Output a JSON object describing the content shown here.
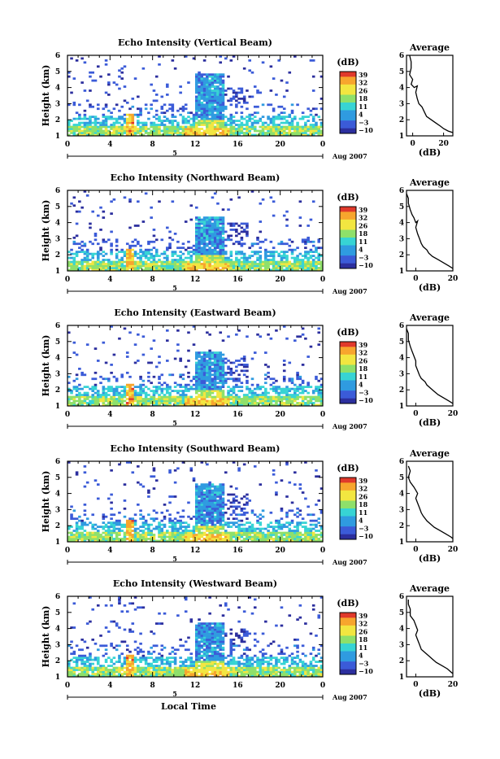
{
  "chart_data": [
    {
      "type": "heatmap",
      "title": "Echo Intensity (Vertical Beam)",
      "ylabel": "Height (km)",
      "colorbar_title": "(dB)",
      "colorbar_ticks": [
        "39",
        "32",
        "26",
        "18",
        "11",
        "4",
        "−3",
        "−10"
      ],
      "xticks": [
        "0",
        "4",
        "8",
        "12",
        "16",
        "20",
        "0"
      ],
      "xlim": [
        0,
        24
      ],
      "ylim": [
        1,
        6
      ],
      "date_day": "5",
      "date_label": "Aug 2007",
      "avg": {
        "title": "Average",
        "xlabel": "(dB)",
        "xticks": [
          "0",
          "20"
        ],
        "yticks": [
          "1",
          "2",
          "3",
          "4",
          "5",
          "6"
        ],
        "xlim": [
          -4,
          26
        ],
        "profile": [
          [
            -2,
            6.0
          ],
          [
            -1,
            5.6
          ],
          [
            -1,
            5.2
          ],
          [
            -2,
            4.8
          ],
          [
            0,
            4.5
          ],
          [
            -1,
            4.2
          ],
          [
            1,
            4.0
          ],
          [
            3,
            4.1
          ],
          [
            2,
            3.7
          ],
          [
            3,
            3.3
          ],
          [
            4,
            3.0
          ],
          [
            6,
            2.8
          ],
          [
            7,
            2.6
          ],
          [
            8,
            2.4
          ],
          [
            9,
            2.2
          ],
          [
            12,
            2.0
          ],
          [
            15,
            1.8
          ],
          [
            18,
            1.6
          ],
          [
            20,
            1.45
          ],
          [
            23,
            1.3
          ],
          [
            26,
            1.2
          ]
        ]
      }
    },
    {
      "type": "heatmap",
      "title": "Echo Intensity (Northward Beam)",
      "ylabel": "Height (km)",
      "colorbar_title": "(dB)",
      "colorbar_ticks": [
        "39",
        "32",
        "26",
        "18",
        "11",
        "4",
        "−3",
        "−10"
      ],
      "xticks": [
        "0",
        "4",
        "8",
        "12",
        "16",
        "20",
        "0"
      ],
      "xlim": [
        0,
        24
      ],
      "ylim": [
        1,
        6
      ],
      "date_day": "5",
      "date_label": "Aug 2007",
      "avg": {
        "title": "Average",
        "xlabel": "(dB)",
        "xticks": [
          "0",
          "20"
        ],
        "yticks": [
          "1",
          "2",
          "3",
          "4",
          "5",
          "6"
        ],
        "xlim": [
          -5,
          20
        ],
        "profile": [
          [
            -5,
            5.8
          ],
          [
            -4,
            5.5
          ],
          [
            -4,
            5.2
          ],
          [
            -3,
            4.8
          ],
          [
            -2,
            4.5
          ],
          [
            -1,
            4.3
          ],
          [
            0,
            4.0
          ],
          [
            1,
            4.1
          ],
          [
            0,
            3.7
          ],
          [
            1,
            3.3
          ],
          [
            2,
            3.0
          ],
          [
            3,
            2.7
          ],
          [
            4,
            2.5
          ],
          [
            6,
            2.3
          ],
          [
            7,
            2.1
          ],
          [
            9,
            1.9
          ],
          [
            12,
            1.7
          ],
          [
            15,
            1.5
          ],
          [
            18,
            1.3
          ],
          [
            20,
            1.15
          ]
        ]
      }
    },
    {
      "type": "heatmap",
      "title": "Echo Intensity (Eastward Beam)",
      "ylabel": "Height (km)",
      "colorbar_title": "(dB)",
      "colorbar_ticks": [
        "39",
        "32",
        "26",
        "18",
        "11",
        "4",
        "−3",
        "−10"
      ],
      "xticks": [
        "0",
        "4",
        "8",
        "12",
        "16",
        "20",
        "0"
      ],
      "xlim": [
        0,
        24
      ],
      "ylim": [
        1,
        6
      ],
      "date_day": "5",
      "date_label": "Aug 2007",
      "avg": {
        "title": "Average",
        "xlabel": "(dB)",
        "xticks": [
          "0",
          "20"
        ],
        "yticks": [
          "1",
          "2",
          "3",
          "4",
          "5",
          "6"
        ],
        "xlim": [
          -5,
          20
        ],
        "profile": [
          [
            -5,
            5.8
          ],
          [
            -4,
            5.5
          ],
          [
            -4,
            5.1
          ],
          [
            -3,
            4.7
          ],
          [
            -2,
            4.4
          ],
          [
            -1,
            4.1
          ],
          [
            0,
            3.8
          ],
          [
            0,
            3.5
          ],
          [
            1,
            3.2
          ],
          [
            2,
            2.9
          ],
          [
            3,
            2.7
          ],
          [
            5,
            2.5
          ],
          [
            6,
            2.3
          ],
          [
            8,
            2.1
          ],
          [
            10,
            1.9
          ],
          [
            12,
            1.7
          ],
          [
            15,
            1.5
          ],
          [
            18,
            1.3
          ],
          [
            20,
            1.15
          ]
        ]
      }
    },
    {
      "type": "heatmap",
      "title": "Echo Intensity (Southward Beam)",
      "ylabel": "Height (km)",
      "colorbar_title": "(dB)",
      "colorbar_ticks": [
        "39",
        "32",
        "26",
        "18",
        "11",
        "4",
        "−3",
        "−10"
      ],
      "xticks": [
        "0",
        "4",
        "8",
        "12",
        "16",
        "20",
        "0"
      ],
      "xlim": [
        0,
        24
      ],
      "ylim": [
        1,
        6
      ],
      "date_day": "5",
      "date_label": "Aug 2007",
      "avg": {
        "title": "Average",
        "xlabel": "(dB)",
        "xticks": [
          "0",
          "20"
        ],
        "yticks": [
          "1",
          "2",
          "3",
          "4",
          "5",
          "6"
        ],
        "xlim": [
          -5,
          20
        ],
        "profile": [
          [
            -4,
            5.7
          ],
          [
            -3,
            5.4
          ],
          [
            -4,
            5.0
          ],
          [
            -3,
            4.7
          ],
          [
            -1,
            4.4
          ],
          [
            0,
            4.2
          ],
          [
            1,
            4.0
          ],
          [
            0,
            3.7
          ],
          [
            1,
            3.4
          ],
          [
            2,
            3.1
          ],
          [
            3,
            2.8
          ],
          [
            4,
            2.6
          ],
          [
            6,
            2.3
          ],
          [
            8,
            2.1
          ],
          [
            10,
            1.9
          ],
          [
            13,
            1.7
          ],
          [
            16,
            1.5
          ],
          [
            19,
            1.3
          ],
          [
            20,
            1.2
          ]
        ]
      }
    },
    {
      "type": "heatmap",
      "title": "Echo Intensity (Westward Beam)",
      "ylabel": "Height (km)",
      "colorbar_title": "(dB)",
      "colorbar_ticks": [
        "39",
        "32",
        "26",
        "18",
        "11",
        "4",
        "−3",
        "−10"
      ],
      "xticks": [
        "0",
        "4",
        "8",
        "12",
        "16",
        "20",
        "0"
      ],
      "xlim": [
        0,
        24
      ],
      "ylim": [
        1,
        6
      ],
      "date_day": "5",
      "date_label": "Aug 2007",
      "xlabel": "Local Time",
      "avg": {
        "title": "Average",
        "xlabel": "(dB)",
        "xticks": [
          "0",
          "20"
        ],
        "yticks": [
          "1",
          "2",
          "3",
          "4",
          "5",
          "6"
        ],
        "xlim": [
          -5,
          20
        ],
        "profile": [
          [
            -4,
            5.8
          ],
          [
            -4,
            5.5
          ],
          [
            -3,
            5.2
          ],
          [
            -3,
            4.8
          ],
          [
            -1,
            4.5
          ],
          [
            0,
            4.2
          ],
          [
            1,
            3.9
          ],
          [
            0,
            3.6
          ],
          [
            1,
            3.3
          ],
          [
            2,
            3.0
          ],
          [
            3,
            2.7
          ],
          [
            5,
            2.5
          ],
          [
            7,
            2.3
          ],
          [
            9,
            2.1
          ],
          [
            11,
            1.9
          ],
          [
            14,
            1.7
          ],
          [
            17,
            1.5
          ],
          [
            19,
            1.3
          ],
          [
            20,
            1.2
          ]
        ]
      }
    }
  ],
  "heatmap_structure": {
    "core_time": [
      12.5,
      13.5
    ],
    "core_top_km": [
      4.5,
      4.0,
      4.0,
      4.2,
      4.0
    ],
    "rain_time": [
      5.5,
      6.0
    ],
    "colormap": [
      "#2c2f9e",
      "#3b5bd8",
      "#2f9be0",
      "#37d4d4",
      "#8ee06a",
      "#f2e640",
      "#f7a52d",
      "#e0382a"
    ]
  }
}
